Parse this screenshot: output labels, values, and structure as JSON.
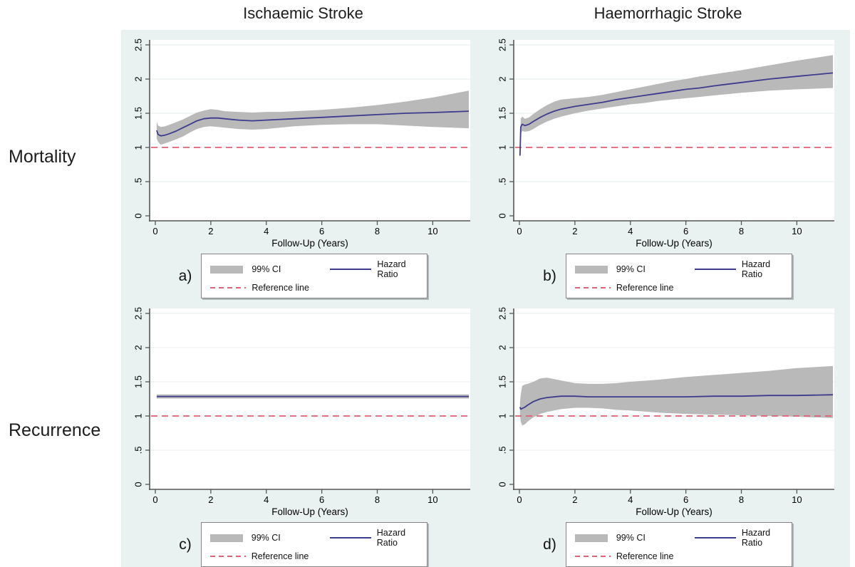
{
  "figure": {
    "col_headers": [
      "Ischaemic Stroke",
      "Haemorrhagic Stroke"
    ],
    "row_labels": [
      "Mortality",
      "Recurrence"
    ]
  },
  "legend": {
    "ci_label": "99% CI",
    "hr_label": "Hazard Ratio",
    "ref_label": "Reference line"
  },
  "axis": {
    "yticks": [
      "0",
      ".5",
      "1",
      "1.5",
      "2",
      "2.5"
    ],
    "ytick_values": [
      0,
      0.5,
      1,
      1.5,
      2,
      2.5
    ],
    "xticks": [
      "0",
      "2",
      "4",
      "6",
      "8",
      "10"
    ],
    "xtick_values": [
      0,
      2,
      4,
      6,
      8,
      10
    ],
    "xlabel": "Follow-Up (Years)",
    "ylim": [
      0,
      2.5
    ],
    "xlim": [
      0,
      11.3
    ],
    "grid": true
  },
  "colors": {
    "band": "#b9b9b9",
    "hazard_line": "#3d3b8e",
    "reference_line": "#e25f74",
    "plot_bg": "#ffffff",
    "graph_region_bg": "#e9f1f1",
    "axis": "#565656",
    "gridline": "#e5edee",
    "text": "#000000"
  },
  "chart_data": [
    {
      "type": "line",
      "panel_label": "a)",
      "row": "Mortality",
      "column": "Ischaemic Stroke",
      "title": "Mortality - Ischaemic Stroke",
      "xlabel": "Follow-Up (Years)",
      "ylim": [
        0,
        2.5
      ],
      "xlim": [
        0,
        11.3
      ],
      "reference_line_y": 1,
      "x": [
        0.05,
        0.1,
        0.2,
        0.35,
        0.5,
        0.75,
        1.0,
        1.25,
        1.5,
        1.75,
        2.0,
        2.25,
        2.5,
        3.0,
        3.5,
        4.0,
        4.5,
        5.0,
        5.5,
        6.0,
        7.0,
        8.0,
        9.0,
        10.0,
        11.3
      ],
      "series": [
        {
          "name": "Hazard Ratio",
          "values": [
            1.25,
            1.19,
            1.17,
            1.18,
            1.2,
            1.24,
            1.29,
            1.34,
            1.39,
            1.42,
            1.43,
            1.43,
            1.42,
            1.4,
            1.39,
            1.4,
            1.41,
            1.42,
            1.43,
            1.44,
            1.46,
            1.48,
            1.5,
            1.51,
            1.53
          ]
        },
        {
          "name": "99% CI lower",
          "values": [
            1.13,
            1.08,
            1.04,
            1.06,
            1.08,
            1.12,
            1.16,
            1.22,
            1.27,
            1.3,
            1.31,
            1.3,
            1.29,
            1.27,
            1.26,
            1.27,
            1.29,
            1.31,
            1.32,
            1.33,
            1.34,
            1.34,
            1.32,
            1.3,
            1.28
          ]
        },
        {
          "name": "99% CI upper",
          "values": [
            1.38,
            1.32,
            1.3,
            1.31,
            1.33,
            1.37,
            1.41,
            1.46,
            1.51,
            1.54,
            1.56,
            1.55,
            1.53,
            1.52,
            1.51,
            1.52,
            1.52,
            1.53,
            1.54,
            1.55,
            1.58,
            1.62,
            1.67,
            1.73,
            1.83
          ]
        }
      ]
    },
    {
      "type": "line",
      "panel_label": "b)",
      "row": "Mortality",
      "column": "Haemorrhagic Stroke",
      "title": "Mortality - Haemorrhagic Stroke",
      "xlabel": "Follow-Up (Years)",
      "ylim": [
        0,
        2.5
      ],
      "xlim": [
        0,
        11.3
      ],
      "reference_line_y": 1,
      "x": [
        0.02,
        0.05,
        0.1,
        0.2,
        0.35,
        0.5,
        0.75,
        1.0,
        1.25,
        1.5,
        2.0,
        2.5,
        3.0,
        3.5,
        4.0,
        4.5,
        5.0,
        5.5,
        6.0,
        6.5,
        7.0,
        8.0,
        9.0,
        10.0,
        11.3
      ],
      "series": [
        {
          "name": "Hazard Ratio",
          "values": [
            0.88,
            1.3,
            1.34,
            1.32,
            1.34,
            1.38,
            1.44,
            1.49,
            1.53,
            1.56,
            1.6,
            1.63,
            1.66,
            1.7,
            1.73,
            1.76,
            1.79,
            1.82,
            1.85,
            1.87,
            1.9,
            1.95,
            2.0,
            2.04,
            2.09
          ]
        },
        {
          "name": "99% CI lower",
          "values": [
            0.88,
            1.2,
            1.24,
            1.23,
            1.24,
            1.27,
            1.33,
            1.38,
            1.42,
            1.45,
            1.5,
            1.54,
            1.57,
            1.6,
            1.63,
            1.65,
            1.68,
            1.7,
            1.72,
            1.74,
            1.76,
            1.8,
            1.83,
            1.85,
            1.87
          ]
        },
        {
          "name": "99% CI upper",
          "values": [
            0.88,
            1.42,
            1.45,
            1.42,
            1.44,
            1.49,
            1.56,
            1.62,
            1.67,
            1.7,
            1.72,
            1.74,
            1.77,
            1.81,
            1.85,
            1.89,
            1.93,
            1.97,
            2.0,
            2.04,
            2.07,
            2.13,
            2.2,
            2.27,
            2.35
          ]
        }
      ]
    },
    {
      "type": "line",
      "panel_label": "c)",
      "row": "Recurrence",
      "column": "Ischaemic Stroke",
      "title": "Recurrence - Ischaemic Stroke",
      "xlabel": "Follow-Up (Years)",
      "ylim": [
        0,
        2.5
      ],
      "xlim": [
        0,
        11.3
      ],
      "reference_line_y": 1,
      "x": [
        0.05,
        6.0,
        11.3
      ],
      "series": [
        {
          "name": "Hazard Ratio",
          "values": [
            1.285,
            1.285,
            1.285
          ]
        },
        {
          "name": "99% CI lower",
          "values": [
            1.255,
            1.255,
            1.255
          ]
        },
        {
          "name": "99% CI upper",
          "values": [
            1.315,
            1.315,
            1.315
          ]
        }
      ]
    },
    {
      "type": "line",
      "panel_label": "d)",
      "row": "Recurrence",
      "column": "Haemorrhagic Stroke",
      "title": "Recurrence - Haemorrhagic Stroke",
      "xlabel": "Follow-Up (Years)",
      "ylim": [
        0,
        2.5
      ],
      "xlim": [
        0,
        11.3
      ],
      "reference_line_y": 1,
      "x": [
        0.02,
        0.05,
        0.1,
        0.2,
        0.3,
        0.5,
        0.75,
        1.0,
        1.5,
        2.0,
        2.5,
        3.0,
        3.5,
        4.0,
        5.0,
        6.0,
        7.0,
        8.0,
        9.0,
        10.0,
        11.3
      ],
      "series": [
        {
          "name": "Hazard Ratio",
          "values": [
            1.13,
            1.1,
            1.11,
            1.13,
            1.16,
            1.21,
            1.25,
            1.27,
            1.29,
            1.29,
            1.28,
            1.28,
            1.28,
            1.28,
            1.28,
            1.28,
            1.29,
            1.29,
            1.3,
            1.3,
            1.31
          ]
        },
        {
          "name": "99% CI lower",
          "values": [
            1.02,
            0.92,
            0.86,
            0.88,
            0.92,
            0.98,
            1.03,
            1.06,
            1.1,
            1.12,
            1.12,
            1.11,
            1.09,
            1.08,
            1.05,
            1.03,
            1.02,
            1.01,
            1.0,
            0.99,
            0.97
          ]
        },
        {
          "name": "99% CI upper",
          "values": [
            1.2,
            1.32,
            1.44,
            1.46,
            1.47,
            1.5,
            1.55,
            1.56,
            1.52,
            1.48,
            1.47,
            1.47,
            1.48,
            1.5,
            1.53,
            1.57,
            1.6,
            1.63,
            1.66,
            1.7,
            1.73
          ]
        }
      ]
    }
  ]
}
